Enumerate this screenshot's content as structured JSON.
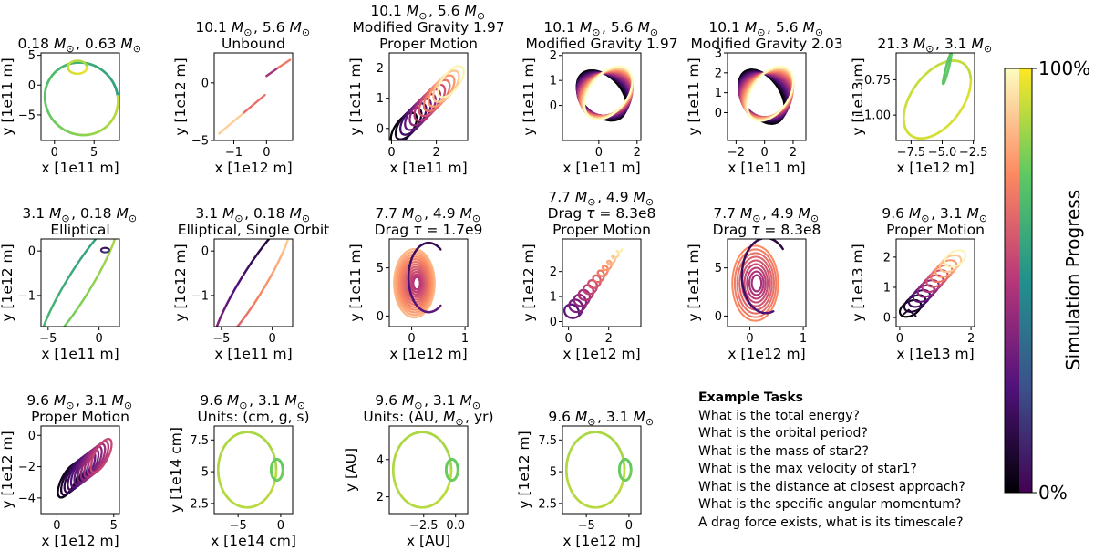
{
  "chart_data": [
    {
      "type": "line",
      "title_lines": [
        "0.18 $M_\\odot$, 0.63 $M_\\odot$"
      ],
      "xlabel": "x [1e11 m]",
      "ylabel": "y [1e11 m]",
      "xlim": [
        -1.7,
        8.2
      ],
      "ylim": [
        -9.3,
        5.4
      ],
      "xticks": [
        0,
        5
      ],
      "yticks": [
        -5,
        0,
        5
      ],
      "shape": "ellipse_small_inner",
      "palette": "viridis"
    },
    {
      "type": "line",
      "title_lines": [
        "10.1 $M_\\odot$, 5.6 $M_\\odot$",
        "Unbound"
      ],
      "xlabel": "x [1e12 m]",
      "ylabel": "y [1e12 m]",
      "xlim": [
        -1.6,
        0.8
      ],
      "ylim": [
        -5.0,
        2.6
      ],
      "xticks": [
        -1,
        0
      ],
      "yticks": [
        -5,
        0
      ],
      "shape": "unbound_lines",
      "palette": "magma"
    },
    {
      "type": "line",
      "title_lines": [
        "10.1 $M_\\odot$, 5.6 $M_\\odot$",
        "Modified Gravity 1.97",
        "Proper Motion"
      ],
      "xlabel": "x [1e11 m]",
      "ylabel": "y [1e11 m]",
      "xlim": [
        -0.1,
        3.4
      ],
      "ylim": [
        -0.4,
        2.5
      ],
      "xticks": [
        0,
        2
      ],
      "yticks": [
        0,
        1,
        2
      ],
      "shape": "drift_loops",
      "palette": "magma"
    },
    {
      "type": "line",
      "title_lines": [
        "10.1 $M_\\odot$, 5.6 $M_\\odot$",
        "Modified Gravity 1.97"
      ],
      "xlabel": "x [1e11 m]",
      "ylabel": "y [1e11 m]",
      "xlim": [
        -1.9,
        2.2
      ],
      "ylim": [
        -1.4,
        2.1
      ],
      "xticks": [
        0,
        2
      ],
      "yticks": [
        0,
        1,
        2
      ],
      "shape": "precess_a",
      "palette": "magma"
    },
    {
      "type": "line",
      "title_lines": [
        "10.1 $M_\\odot$, 5.6 $M_\\odot$",
        "Modified Gravity 2.03"
      ],
      "xlabel": "x [1e11 m]",
      "ylabel": "y [1e11 m]",
      "xlim": [
        -2.6,
        2.9
      ],
      "ylim": [
        -1.4,
        3.0
      ],
      "xticks": [
        -2,
        0,
        2
      ],
      "yticks": [
        0,
        1,
        2,
        3
      ],
      "shape": "precess_b",
      "palette": "magma"
    },
    {
      "type": "line",
      "title_lines": [
        "21.3 $M_\\odot$, 3.1 $M_\\odot$"
      ],
      "xlabel": "x [1e12 m]",
      "ylabel": "y [1e13 m]",
      "xlim": [
        -8.7,
        -2.4
      ],
      "ylim": [
        -1.18,
        -0.56
      ],
      "xticks": [
        -7.5,
        -5.0,
        -2.5
      ],
      "xticklabels": [
        "−7.5",
        "−5.0",
        "−2.5"
      ],
      "yticks": [
        -1.0,
        -0.75
      ],
      "yticklabels": [
        "−1.00",
        "−0.75"
      ],
      "shape": "ellipse_tiny_inner",
      "palette": "viridis"
    },
    {
      "type": "line",
      "title_lines": [
        "3.1 $M_\\odot$, 0.18 $M_\\odot$",
        "Elliptical"
      ],
      "xlabel": "x [1e11 m]",
      "ylabel": "y [1e12 m]",
      "xlim": [
        -5.7,
        2.0
      ],
      "ylim": [
        -1.7,
        0.27
      ],
      "xticks": [
        -5,
        0
      ],
      "yticks": [
        -1,
        0
      ],
      "shape": "tilted_ellipse",
      "palette": "viridis"
    },
    {
      "type": "line",
      "title_lines": [
        "3.1 $M_\\odot$, 0.18 $M_\\odot$",
        "Elliptical, Single Orbit"
      ],
      "xlabel": "x [1e11 m]",
      "ylabel": "y [1e12 m]",
      "xlim": [
        -5.7,
        2.0
      ],
      "ylim": [
        -1.7,
        0.27
      ],
      "xticks": [
        -5,
        0
      ],
      "yticks": [
        -1,
        0
      ],
      "shape": "tilted_ellipse_single",
      "palette": "magma"
    },
    {
      "type": "line",
      "title_lines": [
        "7.7 $M_\\odot$, 4.9 $M_\\odot$",
        "Drag $\\tau = $ 1.7e9"
      ],
      "xlabel": "x [1e12 m]",
      "ylabel": "y [1e11 m]",
      "xlim": [
        -0.42,
        1.05
      ],
      "ylim": [
        -1.1,
        8.0
      ],
      "xticks": [
        0,
        1
      ],
      "yticks": [
        0,
        5
      ],
      "shape": "inspiral_rings",
      "palette": "magma"
    },
    {
      "type": "line",
      "title_lines": [
        "7.7 $M_\\odot$, 4.9 $M_\\odot$",
        "Drag $\\tau = $ 8.3e8",
        "Proper Motion"
      ],
      "xlabel": "x [1e12 m]",
      "ylabel": "y [1e12 m]",
      "xlim": [
        -0.3,
        3.6
      ],
      "ylim": [
        -0.2,
        3.3
      ],
      "xticks": [
        0,
        2
      ],
      "yticks": [
        0,
        1,
        2
      ],
      "shape": "drag_drift",
      "palette": "magma"
    },
    {
      "type": "line",
      "title_lines": [
        "7.7 $M_\\odot$, 4.9 $M_\\odot$",
        "Drag $\\tau = $ 8.3e8"
      ],
      "xlabel": "x [1e12 m]",
      "ylabel": "y [1e11 m]",
      "xlim": [
        -0.42,
        1.05
      ],
      "ylim": [
        -1.1,
        8.0
      ],
      "xticks": [
        0,
        1
      ],
      "yticks": [
        0,
        5
      ],
      "shape": "inspiral_rings_b",
      "palette": "magma"
    },
    {
      "type": "line",
      "title_lines": [
        "9.6 $M_\\odot$, 3.1 $M_\\odot$",
        "Proper Motion"
      ],
      "xlabel": "x [1e13 m]",
      "ylabel": "y [1e13 m]",
      "xlim": [
        -0.1,
        2.1
      ],
      "ylim": [
        -0.3,
        2.6
      ],
      "xticks": [
        0,
        2
      ],
      "yticks": [
        0,
        1,
        2
      ],
      "shape": "drift_loops_small",
      "palette": "magma"
    },
    {
      "type": "line",
      "title_lines": [
        "9.6 $M_\\odot$, 3.1 $M_\\odot$",
        "Proper Motion"
      ],
      "xlabel": "x [1e12 m]",
      "ylabel": "y [1e12 m]",
      "xlim": [
        -1.4,
        5.5
      ],
      "ylim": [
        -5.0,
        0.6
      ],
      "xticks": [
        0,
        5
      ],
      "yticks": [
        -4,
        -2,
        0
      ],
      "shape": "drift_down",
      "palette": "magma"
    },
    {
      "type": "line",
      "title_lines": [
        "9.6 $M_\\odot$, 3.1 $M_\\odot$",
        "Units: (cm, g, s)"
      ],
      "xlabel": "x [1e14 cm]",
      "ylabel": "y [1e14 cm]",
      "xlim": [
        -7.8,
        1.4
      ],
      "ylim": [
        1.7,
        8.6
      ],
      "xticks": [
        -5,
        0
      ],
      "yticks": [
        2.5,
        5.0,
        7.5
      ],
      "shape": "big_ellipse_inner",
      "palette": "viridis"
    },
    {
      "type": "line",
      "title_lines": [
        "9.6 $M_\\odot$, 3.1 $M_\\odot$",
        "Units: (AU, $M_\\odot$, yr)"
      ],
      "xlabel": "x [AU]",
      "ylabel": "y [AU]",
      "xlim": [
        -5.2,
        0.95
      ],
      "ylim": [
        1.1,
        5.8
      ],
      "xticks": [
        -2.5,
        0.0
      ],
      "xticklabels": [
        "−2.5",
        "0.0"
      ],
      "yticks": [
        2,
        4
      ],
      "shape": "big_ellipse_inner",
      "palette": "viridis"
    },
    {
      "type": "line",
      "title_lines": [
        "9.6 $M_\\odot$, 3.1 $M_\\odot$"
      ],
      "xlabel": "x [1e12 m]",
      "ylabel": "y [1e12 m]",
      "xlim": [
        -7.8,
        1.4
      ],
      "ylim": [
        1.7,
        8.6
      ],
      "xticks": [
        -5,
        0
      ],
      "yticks": [
        2.5,
        5.0,
        7.5
      ],
      "shape": "big_ellipse_inner",
      "palette": "viridis"
    }
  ],
  "colorbar": {
    "label": "Simulation Progress",
    "top_label": "100%",
    "bottom_label": "0%"
  },
  "tasks": {
    "heading": "Example Tasks",
    "items": [
      "What is the total energy?",
      "What is the orbital period?",
      "What is the mass of star2?",
      "What is the max velocity of star1?",
      "What is the distance at closest approach?",
      "What is the specific angular momentum?",
      "A drag force exists, what is its timescale?"
    ]
  }
}
